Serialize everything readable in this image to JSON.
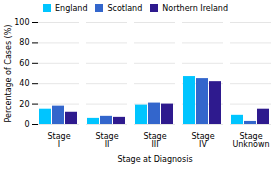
{
  "chart_data": {
    "type": "bar",
    "categories": [
      "Stage I",
      "Stage II",
      "Stage III",
      "Stage IV",
      "Stage Unknown"
    ],
    "series": [
      {
        "name": "England",
        "color": "#00c5ff",
        "values": [
          15,
          6,
          19,
          47,
          9
        ]
      },
      {
        "name": "Scotland",
        "color": "#3366cc",
        "values": [
          18,
          8,
          21,
          45,
          3
        ]
      },
      {
        "name": "Northern Ireland",
        "color": "#2e1a8e",
        "values": [
          12,
          7,
          20,
          42,
          15
        ]
      }
    ],
    "xlabel": "Stage at Diagnosis",
    "ylabel": "Percentage of Cases (%)",
    "ylim": [
      0,
      100
    ],
    "yticks": [
      0,
      20,
      40,
      60,
      80,
      100
    ],
    "grid": true,
    "legend": "top"
  }
}
